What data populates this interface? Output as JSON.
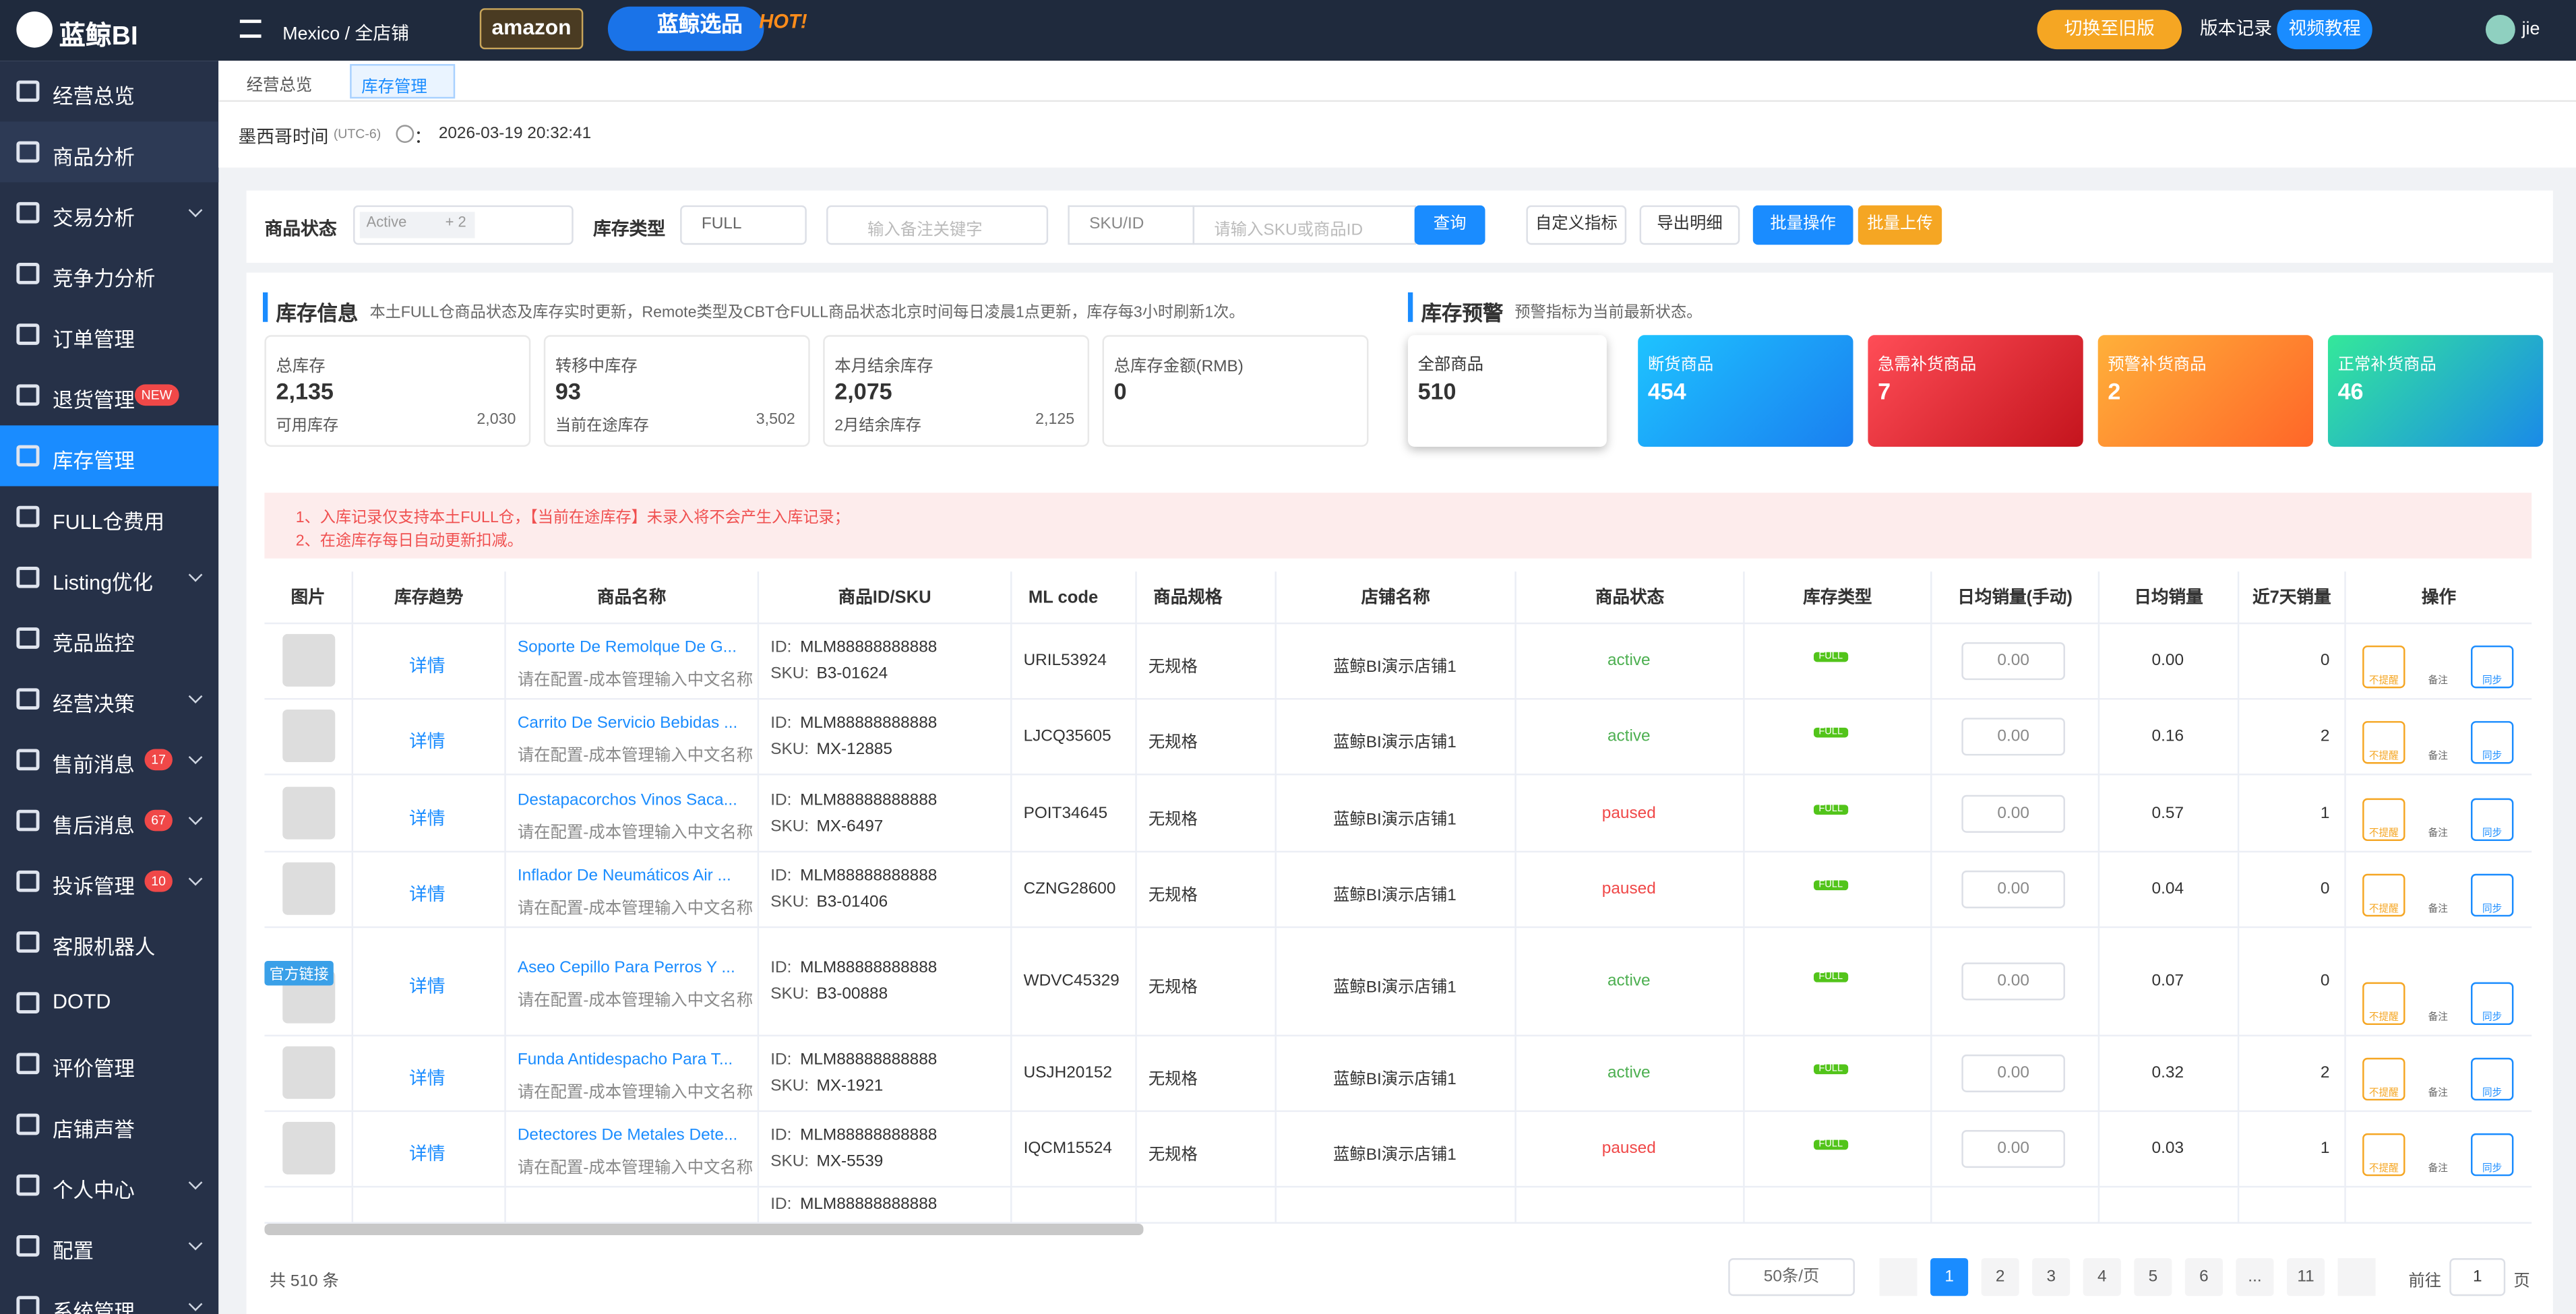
{
  "header": {
    "logo": "蓝鲸BI",
    "region": "Mexico / 全店铺",
    "amazon": "amazon",
    "brand": "蓝鲸选品",
    "brand_hot": "HOT!",
    "buttons": [
      "切换至旧版",
      "版本记录",
      "视频教程"
    ],
    "user": "jie"
  },
  "sidebar": [
    {
      "label": "经营总览"
    },
    {
      "label": "商品分析"
    },
    {
      "label": "交易分析",
      "arrow": true
    },
    {
      "label": "竞争力分析"
    },
    {
      "label": "订单管理"
    },
    {
      "label": "退货管理",
      "badge": "NEW"
    },
    {
      "label": "库存管理",
      "active": true
    },
    {
      "label": "FULL仓费用"
    },
    {
      "label": "Listing优化",
      "arrow": true
    },
    {
      "label": "竞品监控"
    },
    {
      "label": "经营决策",
      "arrow": true
    },
    {
      "label": "售前消息",
      "badge": "17",
      "arrow": true
    },
    {
      "label": "售后消息",
      "badge": "67",
      "arrow": true
    },
    {
      "label": "投诉管理",
      "badge": "10",
      "arrow": true
    },
    {
      "label": "客服机器人"
    },
    {
      "label": "DOTD"
    },
    {
      "label": "评价管理"
    },
    {
      "label": "店铺声誉"
    },
    {
      "label": "个人中心",
      "arrow": true
    },
    {
      "label": "配置",
      "arrow": true
    },
    {
      "label": "系统管理",
      "arrow": true
    }
  ],
  "tabs": [
    "经营总览",
    "库存管理"
  ],
  "time": {
    "label": "墨西哥时间",
    "tz": "(UTC-6)",
    "sep": "：",
    "value": "2026-03-19 20:32:41"
  },
  "filters": {
    "status_label": "商品状态",
    "status_tag": "Active",
    "status_more": "+ 2",
    "type_label": "库存类型",
    "type_value": "FULL",
    "search_placeholder": "输入备注关键字",
    "sku_select": "SKU/ID",
    "sku_placeholder": "请输入SKU或商品ID",
    "buttons": [
      "查询",
      "自定义指标",
      "导出明细",
      "批量操作",
      "批量上传"
    ]
  },
  "info": {
    "title": "库存信息",
    "note": "本土FULL仓商品状态及库存实时更新，Remote类型及CBT仓FULL商品状态北京时间每日凌晨1点更新，库存每3小时刷新1次。",
    "cards": [
      {
        "label": "总库存",
        "value": "2,135",
        "sub_label": "可用库存",
        "sub_value": "2,030"
      },
      {
        "label": "转移中库存",
        "value": "93",
        "sub_label": "当前在途库存",
        "sub_value": "3,502"
      },
      {
        "label": "本月结余库存",
        "value": "2,075",
        "sub_label": "2月结余库存",
        "sub_value": "2,125"
      },
      {
        "label": "总库存金额(RMB)",
        "value": "0"
      }
    ]
  },
  "warning": {
    "title": "库存预警",
    "note": "预警指标为当前最新状态。",
    "cards": [
      {
        "label": "全部商品",
        "value": "510"
      },
      {
        "label": "断货商品",
        "value": "454"
      },
      {
        "label": "急需补货商品",
        "value": "7"
      },
      {
        "label": "预警补货商品",
        "value": "2"
      },
      {
        "label": "正常补货商品",
        "value": "46"
      }
    ]
  },
  "notice": [
    "1、入库记录仅支持本土FULL仓，【当前在途库存】未录入将不会产生入库记录；",
    "2、在途库存每日自动更新扣减。"
  ],
  "table": {
    "columns": [
      "图片",
      "库存趋势",
      "商品名称",
      "商品ID/SKU",
      "ML code",
      "商品规格",
      "店铺名称",
      "商品状态",
      "库存类型",
      "日均销量(手动)",
      "日均销量",
      "近7天销量",
      "操作"
    ],
    "detail": "详情",
    "id_prefix": "ID:",
    "sku_prefix": "SKU:",
    "official": "官方链接",
    "actions": [
      "不提醒",
      "备注",
      "同步"
    ],
    "rows": [
      {
        "name": "Soporte De Remolque De G...",
        "name_zh": "请在配置-成本管理输入中文名称",
        "id": "MLM88888888888",
        "sku": "B3-01624",
        "ml": "URIL53924",
        "spec": "无规格",
        "shop": "蓝鲸BI演示店铺1",
        "status": "active",
        "type": "FULL",
        "manual": "0.00",
        "daily": "0.00",
        "week": "0"
      },
      {
        "name": "Carrito De Servicio Bebidas ...",
        "name_zh": "请在配置-成本管理输入中文名称",
        "id": "MLM88888888888",
        "sku": "MX-12885",
        "ml": "LJCQ35605",
        "spec": "无规格",
        "shop": "蓝鲸BI演示店铺1",
        "status": "active",
        "type": "FULL",
        "manual": "0.00",
        "daily": "0.16",
        "week": "2"
      },
      {
        "name": "Destapacorchos Vinos Saca...",
        "name_zh": "请在配置-成本管理输入中文名称",
        "id": "MLM88888888888",
        "sku": "MX-6497",
        "ml": "POIT34645",
        "spec": "无规格",
        "shop": "蓝鲸BI演示店铺1",
        "status": "paused",
        "type": "FULL",
        "manual": "0.00",
        "daily": "0.57",
        "week": "1"
      },
      {
        "name": "Inflador De Neumáticos Air ...",
        "name_zh": "请在配置-成本管理输入中文名称",
        "id": "MLM88888888888",
        "sku": "B3-01406",
        "ml": "CZNG28600",
        "spec": "无规格",
        "shop": "蓝鲸BI演示店铺1",
        "status": "paused",
        "type": "FULL",
        "manual": "0.00",
        "daily": "0.04",
        "week": "0"
      },
      {
        "name": "Aseo Cepillo Para Perros Y ...",
        "name_zh": "请在配置-成本管理输入中文名称",
        "id": "MLM88888888888",
        "sku": "B3-00888",
        "ml": "WDVC45329",
        "spec": "无规格",
        "shop": "蓝鲸BI演示店铺1",
        "status": "active",
        "type": "FULL",
        "manual": "0.00",
        "daily": "0.07",
        "week": "0",
        "official": true
      },
      {
        "name": "Funda Antidespacho Para T...",
        "name_zh": "请在配置-成本管理输入中文名称",
        "id": "MLM88888888888",
        "sku": "MX-1921",
        "ml": "USJH20152",
        "spec": "无规格",
        "shop": "蓝鲸BI演示店铺1",
        "status": "active",
        "type": "FULL",
        "manual": "0.00",
        "daily": "0.32",
        "week": "2"
      },
      {
        "name": "Detectores De Metales Dete...",
        "name_zh": "请在配置-成本管理输入中文名称",
        "id": "MLM88888888888",
        "sku": "MX-5539",
        "ml": "IQCM15524",
        "spec": "无规格",
        "shop": "蓝鲸BI演示店铺1",
        "status": "paused",
        "type": "FULL",
        "manual": "0.00",
        "daily": "0.03",
        "week": "1"
      },
      {
        "id": "MLM88888888888"
      }
    ]
  },
  "pagination": {
    "total": "共 510 条",
    "page_size": "50条/页",
    "pages": [
      "1",
      "2",
      "3",
      "4",
      "5",
      "6",
      "...",
      "11"
    ],
    "goto": "前往",
    "goto_value": "1",
    "page_unit": "页"
  }
}
